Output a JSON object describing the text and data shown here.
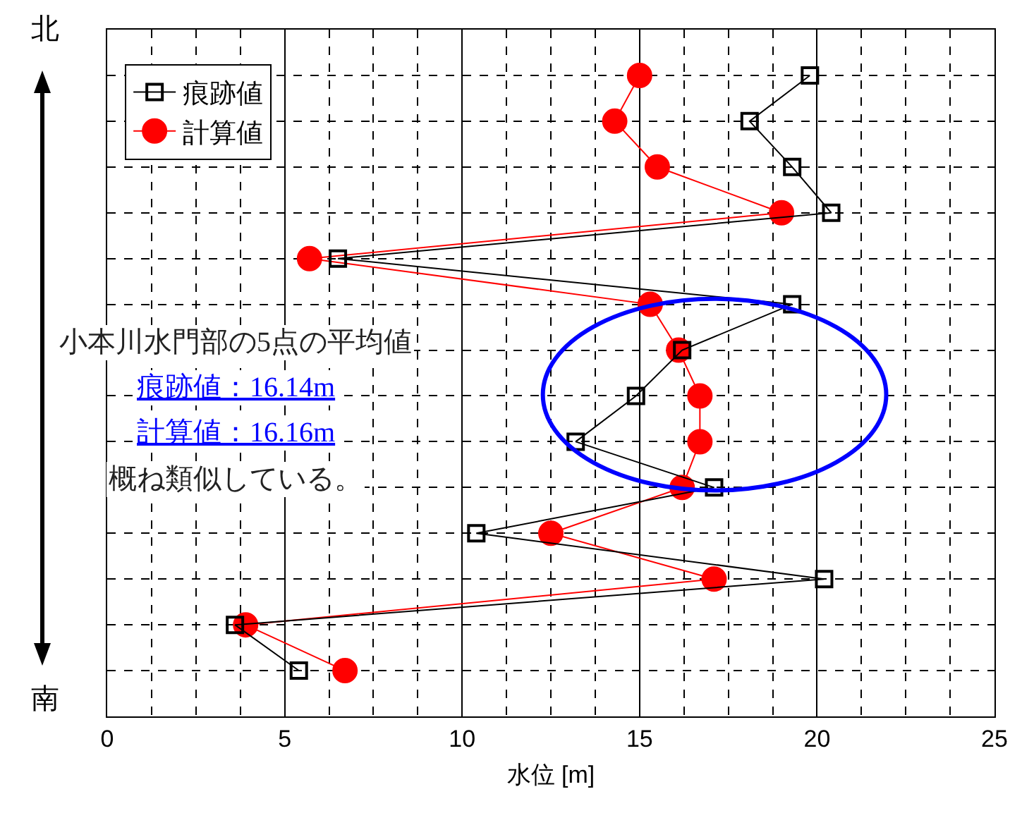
{
  "chart_data": {
    "type": "line",
    "xlabel": "水位 [m]",
    "categories": [
      null,
      null,
      null,
      null,
      null,
      null,
      null,
      null,
      null,
      null,
      null,
      null,
      null,
      null
    ],
    "series": [
      {
        "name": "痕跡値",
        "color": "#000000",
        "marker": "square",
        "values": [
          19.8,
          18.1,
          19.3,
          20.4,
          6.5,
          19.3,
          16.2,
          14.9,
          13.2,
          17.1,
          10.4,
          20.2,
          3.6,
          5.4
        ]
      },
      {
        "name": "計算値",
        "color": "#ff0000",
        "marker": "circle",
        "values": [
          15.0,
          14.3,
          15.5,
          19.0,
          5.7,
          15.3,
          16.1,
          16.7,
          16.7,
          16.2,
          12.5,
          17.1,
          3.9,
          6.7
        ]
      }
    ],
    "orientation": "horizontal",
    "xlim": [
      0,
      25
    ],
    "xticks": [
      0,
      5,
      10,
      15,
      20,
      25
    ],
    "grid": true,
    "legend": "top left",
    "line_style": "solid",
    "tick_labels": "x",
    "annotations": [
      "北",
      "南",
      "小本川水門部の5点の平均値",
      "痕跡値：16.14m",
      "計算値：16.16m",
      "概ね類似している。"
    ]
  }
}
